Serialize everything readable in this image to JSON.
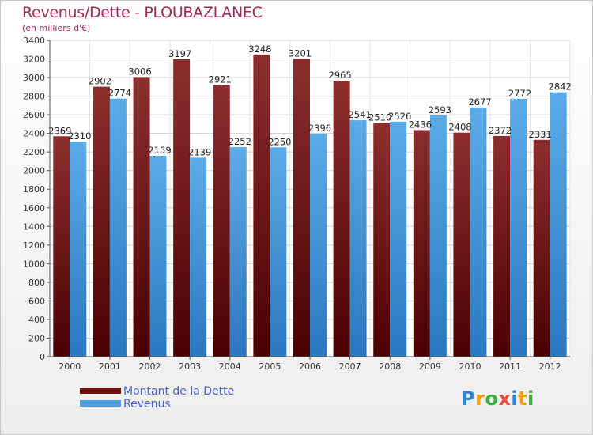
{
  "title": "Revenus/Dette - PLOUBAZLANEC",
  "subtitle": "(en milliers d'€)",
  "legend": [
    {
      "label": "Montant de la Dette",
      "color": "#6b1414"
    },
    {
      "label": "Revenus",
      "color": "#4aa0e0"
    }
  ],
  "logo": {
    "letters": [
      "P",
      "r",
      "o",
      "x",
      "i",
      "t",
      "i"
    ],
    "colors": [
      "#2e86d8",
      "#f39c12",
      "#3dae3d",
      "#e74c3c",
      "#2e86d8",
      "#f39c12",
      "#3dae3d"
    ]
  },
  "chart_data": {
    "type": "bar",
    "categories": [
      "2000",
      "2001",
      "2002",
      "2003",
      "2004",
      "2005",
      "2006",
      "2007",
      "2008",
      "2009",
      "2010",
      "2011",
      "2012"
    ],
    "series": [
      {
        "name": "Montant de la Dette",
        "values": [
          2369,
          2902,
          3006,
          3197,
          2921,
          3248,
          3201,
          2965,
          2510,
          2436,
          2408,
          2372,
          2331
        ],
        "labels": [
          "2369",
          "2902",
          "3006",
          "3197",
          "2921",
          "3248",
          "3201",
          "2965",
          "2510",
          "2436",
          "2408",
          "2372",
          "2331"
        ]
      },
      {
        "name": "Revenus",
        "values": [
          2310,
          2774,
          2159,
          2139,
          2252,
          2250,
          2396,
          2541,
          2526,
          2593,
          2677,
          2772,
          2842
        ],
        "labels": [
          "2310",
          "2774",
          "2159",
          "2139",
          "2252",
          "2250",
          "2396",
          "2541",
          "2526",
          "2593",
          "2677",
          "2772",
          "2842"
        ]
      }
    ],
    "ylim": [
      0,
      3400
    ],
    "yticks": [
      0,
      200,
      400,
      600,
      800,
      1000,
      1200,
      1400,
      1600,
      1800,
      2000,
      2200,
      2400,
      2600,
      2800,
      3000,
      3200,
      3400
    ],
    "grid": true
  }
}
